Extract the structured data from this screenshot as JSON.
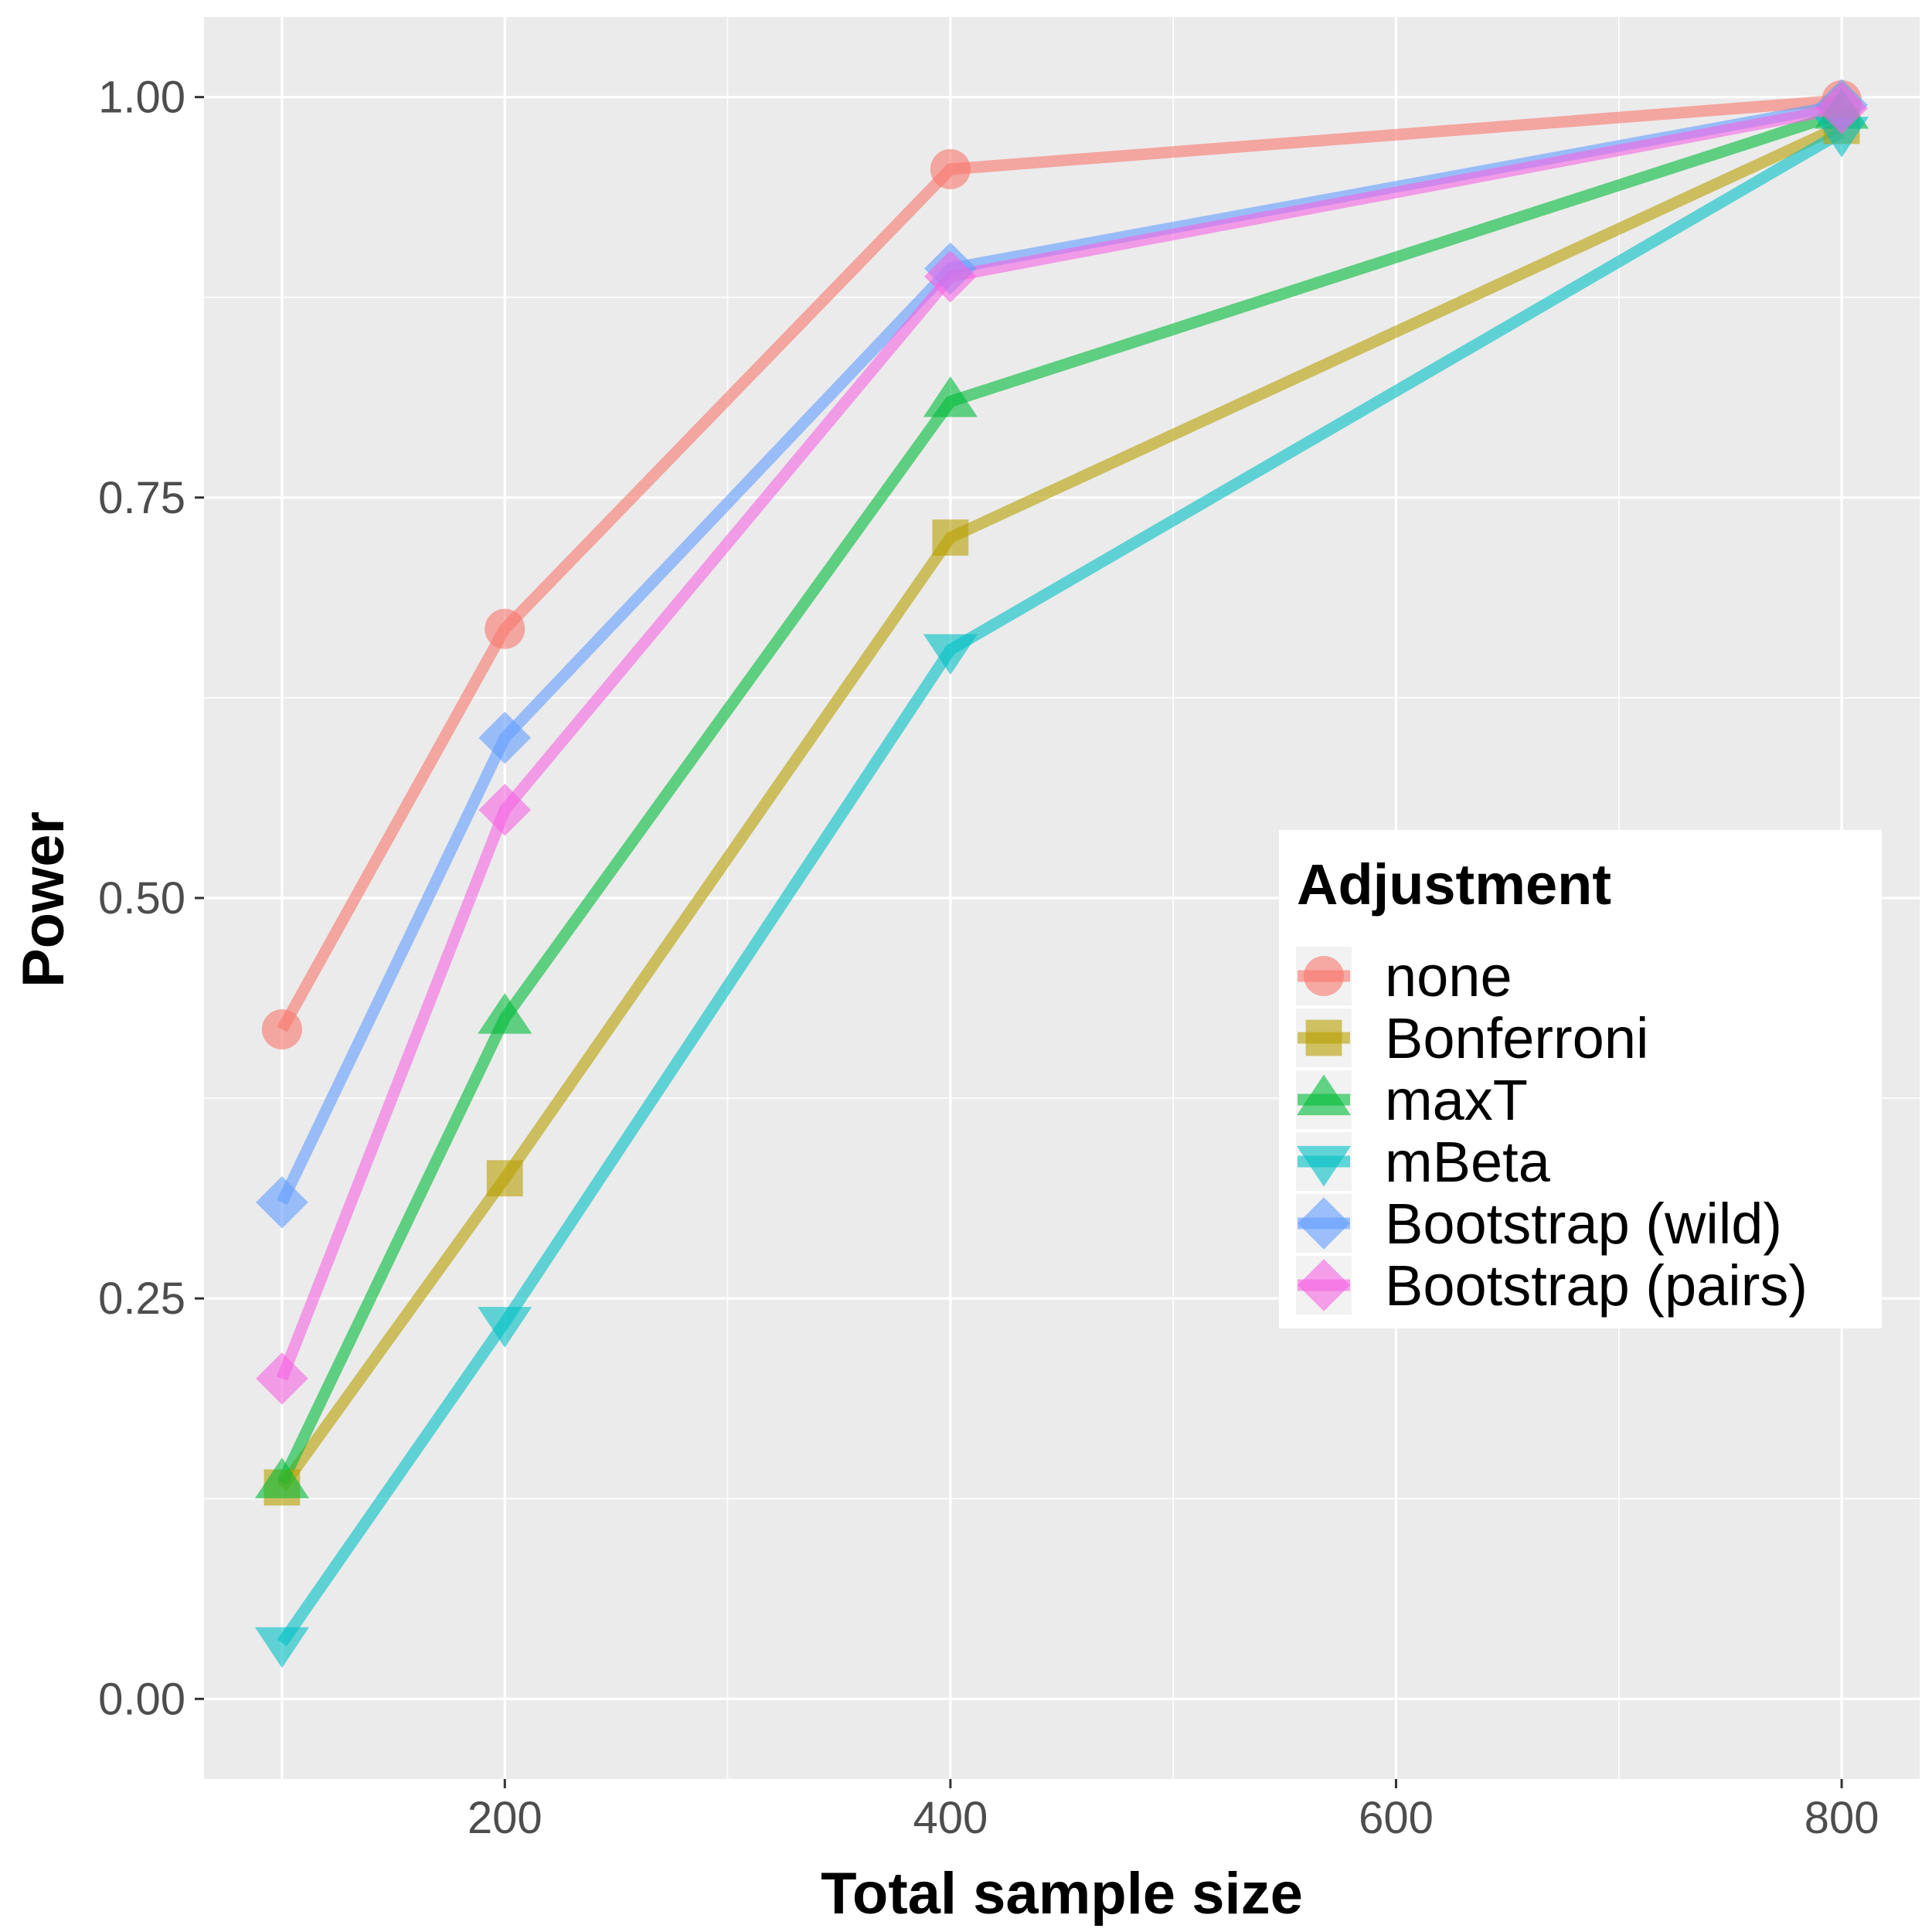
{
  "chart_data": {
    "type": "line",
    "title": "",
    "xlabel": "Total sample size",
    "ylabel": "Power",
    "xlim": [
      65,
      835
    ],
    "ylim": [
      -0.05,
      1.05
    ],
    "x": [
      100,
      200,
      400,
      800
    ],
    "x_ticks": [
      200,
      400,
      600,
      800
    ],
    "x_tick_labels": [
      "200",
      "400",
      "600",
      "800"
    ],
    "y_ticks": [
      0,
      0.25,
      0.5,
      0.75,
      1.0
    ],
    "y_tick_labels": [
      "0.00",
      "0.25",
      "0.50",
      "0.75",
      "1.00"
    ],
    "grid": true,
    "legend": {
      "title": "Adjustment",
      "placement": "right"
    },
    "series": [
      {
        "name": "none",
        "shape": "circle",
        "color": "#F8766D",
        "values": [
          0.418,
          0.668,
          0.955,
          0.998
        ]
      },
      {
        "name": "Bonferroni",
        "shape": "square",
        "color": "#B79F00",
        "values": [
          0.132,
          0.325,
          0.725,
          0.982
        ]
      },
      {
        "name": "maxT",
        "shape": "triangle-up",
        "color": "#00BA38",
        "values": [
          0.135,
          0.425,
          0.81,
          0.99
        ]
      },
      {
        "name": "mBeta",
        "shape": "triangle-down",
        "color": "#00BFC4",
        "values": [
          0.035,
          0.235,
          0.655,
          0.978
        ]
      },
      {
        "name": "Bootstrap (wild)",
        "shape": "diamond",
        "color": "#619CFF",
        "values": [
          0.31,
          0.6,
          0.893,
          0.995
        ]
      },
      {
        "name": "Bootstrap (pairs)",
        "shape": "diamond",
        "color": "#F564E3",
        "values": [
          0.2,
          0.555,
          0.888,
          0.993
        ]
      }
    ]
  }
}
